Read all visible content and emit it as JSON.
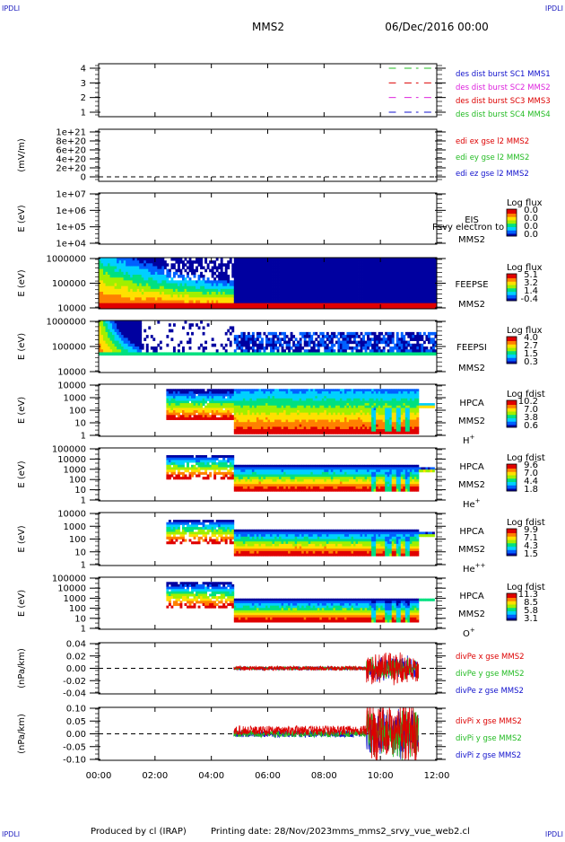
{
  "header": {
    "spacecraft": "MMS2",
    "date_time": "06/Dec/2016 00:00",
    "corner_label": "IPDLI"
  },
  "footer": {
    "produced_by": "Produced by cl (IRAP)",
    "printing_date": "Printing date: 28/Nov/2023",
    "filename": "mms_mms2_srvy_vue_web2.cl"
  },
  "colors": {
    "green": "#22bb22",
    "magenta": "#dd22dd",
    "red": "#dd0000",
    "blue": "#1010cc",
    "spectrogram_scale": [
      "#0000a0",
      "#0060ff",
      "#00d0ff",
      "#00e080",
      "#a0f000",
      "#ffe000",
      "#ff8000",
      "#e00000"
    ]
  },
  "chart_data": [
    {
      "id": "burst",
      "type": "line",
      "ylabel": "",
      "yticks": [
        "4",
        "3",
        "2",
        "1"
      ],
      "legend": [
        {
          "name": "des dist burst SC1 MMS1",
          "color": "#1010cc"
        },
        {
          "name": "des dist burst SC2 MMS2",
          "color": "#dd22dd"
        },
        {
          "name": "des dist burst SC3 MMS3",
          "color": "#dd0000"
        },
        {
          "name": "des dist burst SC4 MMS4",
          "color": "#22bb22"
        }
      ],
      "series": [
        {
          "sc": 4,
          "color": "#22bb22",
          "segments": [
            [
              10.3,
              10.55
            ],
            [
              10.85,
              11.35
            ],
            [
              11.55,
              11.85
            ]
          ]
        },
        {
          "sc": 3,
          "color": "#dd0000",
          "segments": [
            [
              10.3,
              10.55
            ],
            [
              10.85,
              11.35
            ],
            [
              11.55,
              11.85
            ]
          ]
        },
        {
          "sc": 2,
          "color": "#dd22dd",
          "segments": [
            [
              10.3,
              10.55
            ],
            [
              10.85,
              11.35
            ],
            [
              11.55,
              11.85
            ]
          ]
        },
        {
          "sc": 1,
          "color": "#1010cc",
          "segments": [
            [
              10.3,
              10.55
            ],
            [
              10.85,
              11.35
            ],
            [
              11.55,
              11.85
            ]
          ]
        }
      ]
    },
    {
      "id": "edi",
      "type": "line",
      "ylabel": "(mV/m)",
      "yticks": [
        "1e+21",
        "8e+20",
        "6e+20",
        "4e+20",
        "2e+20",
        "0"
      ],
      "legend": [
        {
          "name": "edi ex gse l2 MMS2",
          "color": "#dd0000"
        },
        {
          "name": "edi ey gse l2 MMS2",
          "color": "#22bb22"
        },
        {
          "name": "edi ez gse l2 MMS2",
          "color": "#1010cc"
        }
      ]
    },
    {
      "id": "eis",
      "type": "heatmap",
      "ylabel": "E (eV)",
      "yticks": [
        "1e+07",
        "1e+06",
        "1e+05",
        "1e+04"
      ],
      "side_label": "EIS",
      "side_label2": "MMS2",
      "overlay_text": "Psvy electron to",
      "colorbar_title": "Log flux",
      "colorbar_ticks": [
        "0.0",
        "0.0",
        "0.0",
        "0.0"
      ]
    },
    {
      "id": "feepse",
      "type": "heatmap",
      "ylabel": "E (eV)",
      "yticks": [
        "1000000",
        "100000",
        "10000"
      ],
      "side_label": "FEEPSE",
      "side_label2": "MMS2",
      "colorbar_title": "Log flux",
      "colorbar_ticks": [
        "5.1",
        "3.2",
        "1.4",
        "-0.4"
      ]
    },
    {
      "id": "feepsi",
      "type": "heatmap",
      "ylabel": "E (eV)",
      "yticks": [
        "1000000",
        "100000",
        "10000"
      ],
      "side_label": "FEEPSI",
      "side_label2": "MMS2",
      "colorbar_title": "Log flux",
      "colorbar_ticks": [
        "4.0",
        "2.7",
        "1.5",
        "0.3"
      ]
    },
    {
      "id": "hpca_h",
      "type": "heatmap",
      "ylabel": "E (eV)",
      "yticks": [
        "10000",
        "1000",
        "100",
        "10",
        "1"
      ],
      "side_label": "HPCA",
      "side_label2": "MMS2",
      "species": "H",
      "species_sup": "+",
      "colorbar_title": "Log fdist",
      "colorbar_ticks": [
        "10.2",
        "7.0",
        "3.8",
        "0.6"
      ]
    },
    {
      "id": "hpca_he",
      "type": "heatmap",
      "ylabel": "E (eV)",
      "yticks": [
        "100000",
        "10000",
        "1000",
        "100",
        "10",
        "1"
      ],
      "side_label": "HPCA",
      "side_label2": "MMS2",
      "species": "He",
      "species_sup": "+",
      "colorbar_title": "Log fdist",
      "colorbar_ticks": [
        "9.6",
        "7.0",
        "4.4",
        "1.8"
      ]
    },
    {
      "id": "hpca_hepp",
      "type": "heatmap",
      "ylabel": "E (eV)",
      "yticks": [
        "10000",
        "1000",
        "100",
        "10",
        "1"
      ],
      "side_label": "HPCA",
      "side_label2": "MMS2",
      "species": "He",
      "species_sup": "++",
      "colorbar_title": "Log fdist",
      "colorbar_ticks": [
        "9.9",
        "7.1",
        "4.3",
        "1.5"
      ]
    },
    {
      "id": "hpca_o",
      "type": "heatmap",
      "ylabel": "E (eV)",
      "yticks": [
        "100000",
        "10000",
        "1000",
        "100",
        "10",
        "1"
      ],
      "side_label": "HPCA",
      "side_label2": "MMS2",
      "species": "O",
      "species_sup": "+",
      "colorbar_title": "Log fdist",
      "colorbar_ticks": [
        "11.3",
        "8.5",
        "5.8",
        "3.1"
      ]
    },
    {
      "id": "divpe",
      "type": "line",
      "ylabel": "(nPa/km)",
      "yticks": [
        "0.04",
        "0.02",
        "0.00",
        "-0.02",
        "-0.04"
      ],
      "ylim": [
        -0.05,
        0.05
      ],
      "legend": [
        {
          "name": "divPe x gse MMS2",
          "color": "#dd0000"
        },
        {
          "name": "divPe y gse MMS2",
          "color": "#22bb22"
        },
        {
          "name": "divPe z gse MMS2",
          "color": "#1010cc"
        }
      ]
    },
    {
      "id": "divpi",
      "type": "line",
      "ylabel": "(nPa/km)",
      "yticks": [
        "0.10",
        "0.05",
        "0.00",
        "-0.05",
        "-0.10"
      ],
      "ylim": [
        -0.125,
        0.125
      ],
      "legend": [
        {
          "name": "divPi x gse MMS2",
          "color": "#dd0000"
        },
        {
          "name": "divPi y gse MMS2",
          "color": "#22bb22"
        },
        {
          "name": "divPi z gse MMS2",
          "color": "#1010cc"
        }
      ]
    }
  ],
  "x_axis": {
    "range_hours": [
      0,
      12
    ],
    "ticks": [
      "00:00",
      "02:00",
      "04:00",
      "06:00",
      "08:00",
      "10:00",
      "12:00"
    ]
  }
}
